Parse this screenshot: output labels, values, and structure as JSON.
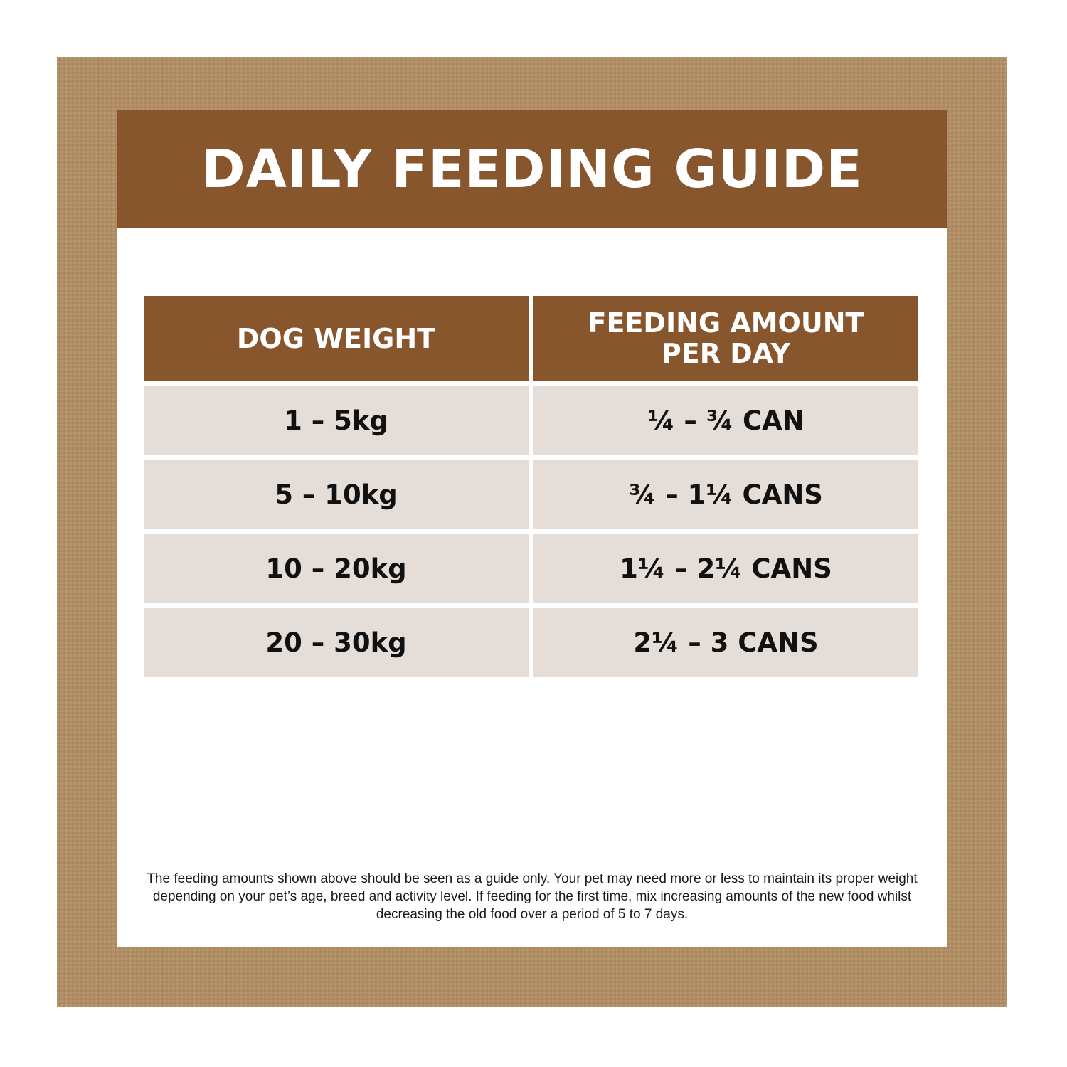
{
  "header": {
    "title": "DAILY FEEDING GUIDE"
  },
  "table": {
    "columns": [
      "DOG WEIGHT",
      "FEEDING AMOUNT\nPER DAY"
    ],
    "rows": [
      [
        "1 – 5kg",
        "¼ – ¾ CAN"
      ],
      [
        "5 – 10kg",
        "¾ – 1¼ CANS"
      ],
      [
        "10 – 20kg",
        "1¼ – 2¼ CANS"
      ],
      [
        "20 – 30kg",
        "2¼ – 3 CANS"
      ]
    ]
  },
  "footer": {
    "note": "The feeding amounts shown above should be seen as a guide only. Your pet may need more or less to maintain its proper weight depending on your pet’s age, breed and activity level. If feeding for the first time, mix increasing amounts of the new food whilst decreasing the old food over a period of 5 to 7 days."
  },
  "colors": {
    "border": "#b08d63",
    "header_bg": "#88562d",
    "row_bg": "#e4ddd8"
  }
}
